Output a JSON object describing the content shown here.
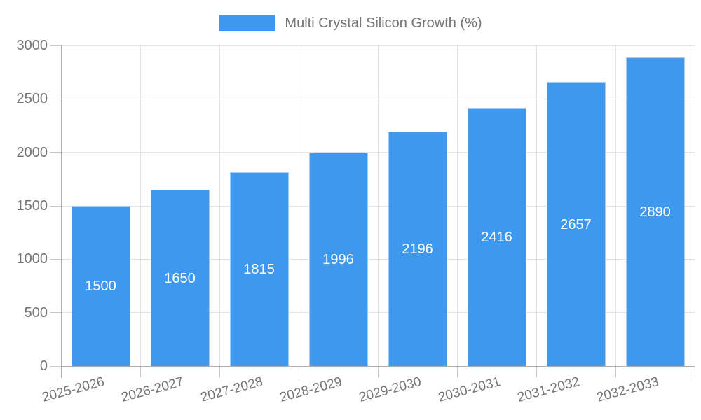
{
  "chart_data": {
    "type": "bar",
    "title": "",
    "legend_label": "Multi Crystal Silicon Growth (%)",
    "legend_position": "top",
    "categories": [
      "2025-2026",
      "2026-2027",
      "2027-2028",
      "2028-2029",
      "2029-2030",
      "2030-2031",
      "2031-2032",
      "2032-2033"
    ],
    "values": [
      1500,
      1650,
      1815,
      1996,
      2196,
      2416,
      2657,
      2890
    ],
    "xlabel": "",
    "ylabel": "",
    "ylim": [
      0,
      3000
    ],
    "yticks": [
      0,
      500,
      1000,
      1500,
      2000,
      2500,
      3000
    ],
    "grid": true,
    "value_labels": "centered-inside-bars",
    "colors": {
      "bar": "#3E99EE",
      "bar_border": "#A5CCF3",
      "grid": "#E2E2E2",
      "axis": "#AFAFAF",
      "tick": "#C9C9C9",
      "label_text": "#757575",
      "value_text": "#FFFFFF",
      "background": "#FFFFFF"
    }
  }
}
